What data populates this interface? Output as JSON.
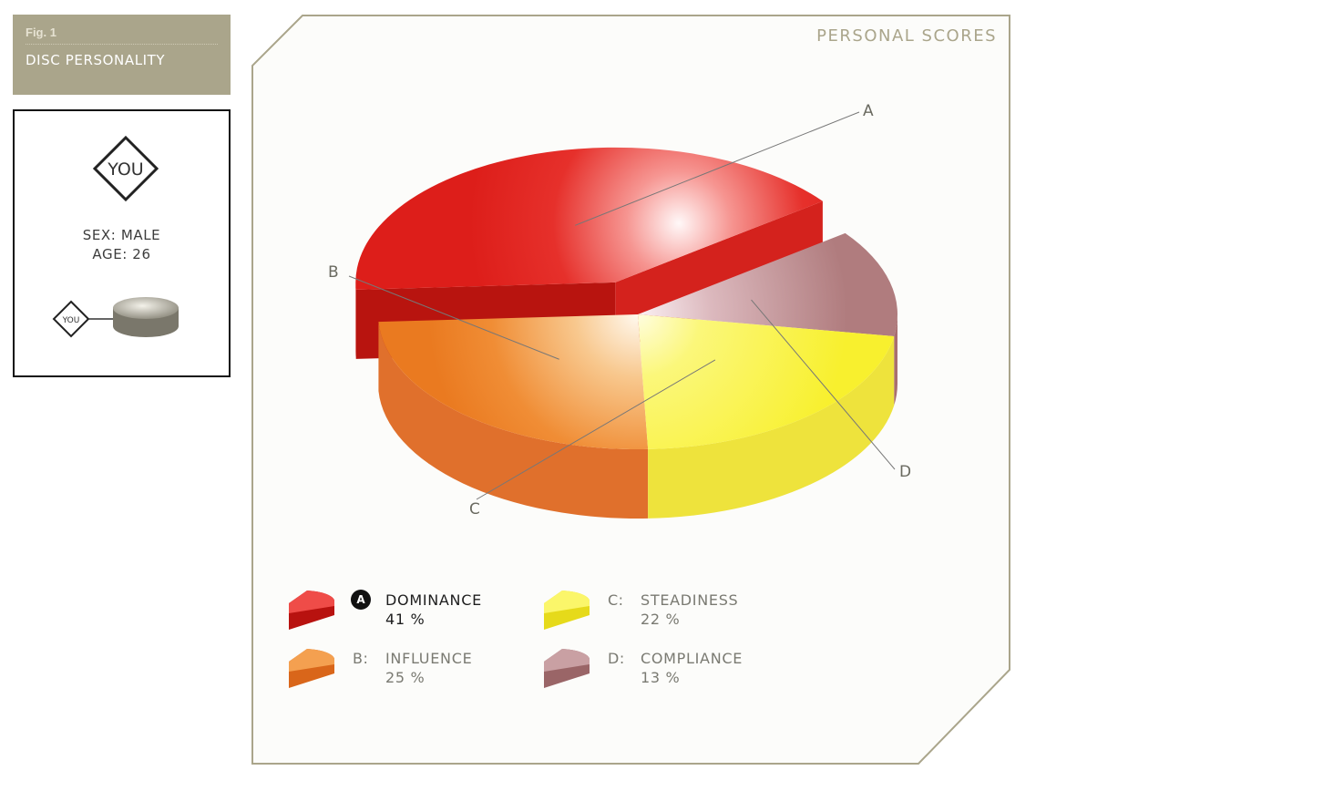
{
  "figure": {
    "number": "Fig. 1",
    "title": "DISC PERSONALITY"
  },
  "profile": {
    "badge": "YOU",
    "sex": "SEX: MALE",
    "age": "AGE: 26",
    "small_badge": "YOU"
  },
  "panel": {
    "title": "PERSONAL SCORES"
  },
  "colors": {
    "dominance": "#e3231f",
    "influence": "#ee7a20",
    "steadiness": "#f9f23a",
    "compliance": "#b47f80",
    "frame": "#aaa58b"
  },
  "chart_data": {
    "type": "pie",
    "title": "PERSONAL SCORES",
    "exploded": [
      "A"
    ],
    "slices": [
      {
        "letter": "A",
        "label": "DOMINANCE",
        "value": 41,
        "display": "41 %",
        "prefix": "A"
      },
      {
        "letter": "B",
        "label": "INFLUENCE",
        "value": 25,
        "display": "25 %",
        "prefix": "B:"
      },
      {
        "letter": "C",
        "label": "STEADINESS",
        "value": 22,
        "display": "22 %",
        "prefix": "C:"
      },
      {
        "letter": "D",
        "label": "COMPLIANCE",
        "value": 13,
        "display": "13 %",
        "prefix": "D:"
      }
    ]
  }
}
